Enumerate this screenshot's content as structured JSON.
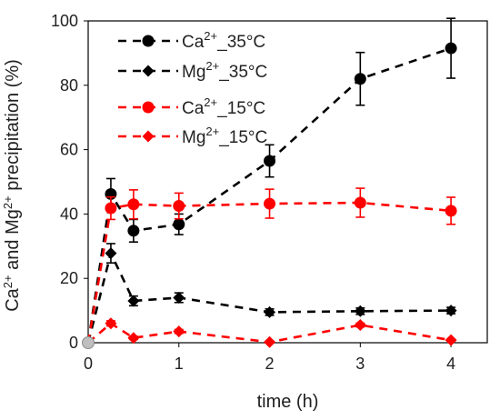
{
  "chart_data": {
    "type": "line",
    "xlabel": "time (h)",
    "ylabel_parts": [
      "Ca",
      "2+",
      " and Mg",
      "2+",
      " precipitation (%)"
    ],
    "xlim": [
      0,
      4.4
    ],
    "ylim": [
      0,
      100
    ],
    "xticks": [
      0,
      1,
      2,
      3,
      4
    ],
    "yticks": [
      0,
      20,
      40,
      60,
      80,
      100
    ],
    "grid": false,
    "legend_position": "top-left",
    "series": [
      {
        "name_parts": [
          "Ca",
          "2+",
          "_35°C"
        ],
        "color": "#000000",
        "marker": "circle",
        "x": [
          0,
          0.25,
          0.5,
          1,
          2,
          3,
          4
        ],
        "y": [
          0,
          46.2,
          34.8,
          36.8,
          56.5,
          82.0,
          91.5
        ],
        "err": [
          0,
          4.8,
          3.5,
          3.2,
          5.0,
          8.2,
          9.3
        ]
      },
      {
        "name_parts": [
          "Mg",
          "2+",
          "_35°C"
        ],
        "color": "#000000",
        "marker": "diamond",
        "x": [
          0,
          0.25,
          0.5,
          1,
          2,
          3,
          4
        ],
        "y": [
          0,
          27.8,
          13.0,
          14.0,
          9.5,
          9.8,
          10.0
        ],
        "err": [
          0,
          3.0,
          1.5,
          1.5,
          1.0,
          1.0,
          1.0
        ]
      },
      {
        "name_parts": [
          "Ca",
          "2+",
          "_15°C"
        ],
        "color": "#ff0000",
        "marker": "circle",
        "x": [
          0,
          0.25,
          0.5,
          1,
          2,
          3,
          4
        ],
        "y": [
          0,
          41.8,
          43.0,
          42.5,
          43.2,
          43.5,
          41.0
        ],
        "err": [
          0,
          3.5,
          4.5,
          4.0,
          4.5,
          4.5,
          4.2
        ]
      },
      {
        "name_parts": [
          "Mg",
          "2+",
          "_15°C"
        ],
        "color": "#ff0000",
        "marker": "diamond",
        "x": [
          0,
          0.25,
          0.5,
          1,
          2,
          3,
          4
        ],
        "y": [
          0,
          6.0,
          1.5,
          3.5,
          0.2,
          5.5,
          0.8
        ],
        "err": [
          0,
          0.8,
          0.5,
          0.6,
          0.3,
          0.6,
          0.3
        ]
      }
    ]
  }
}
